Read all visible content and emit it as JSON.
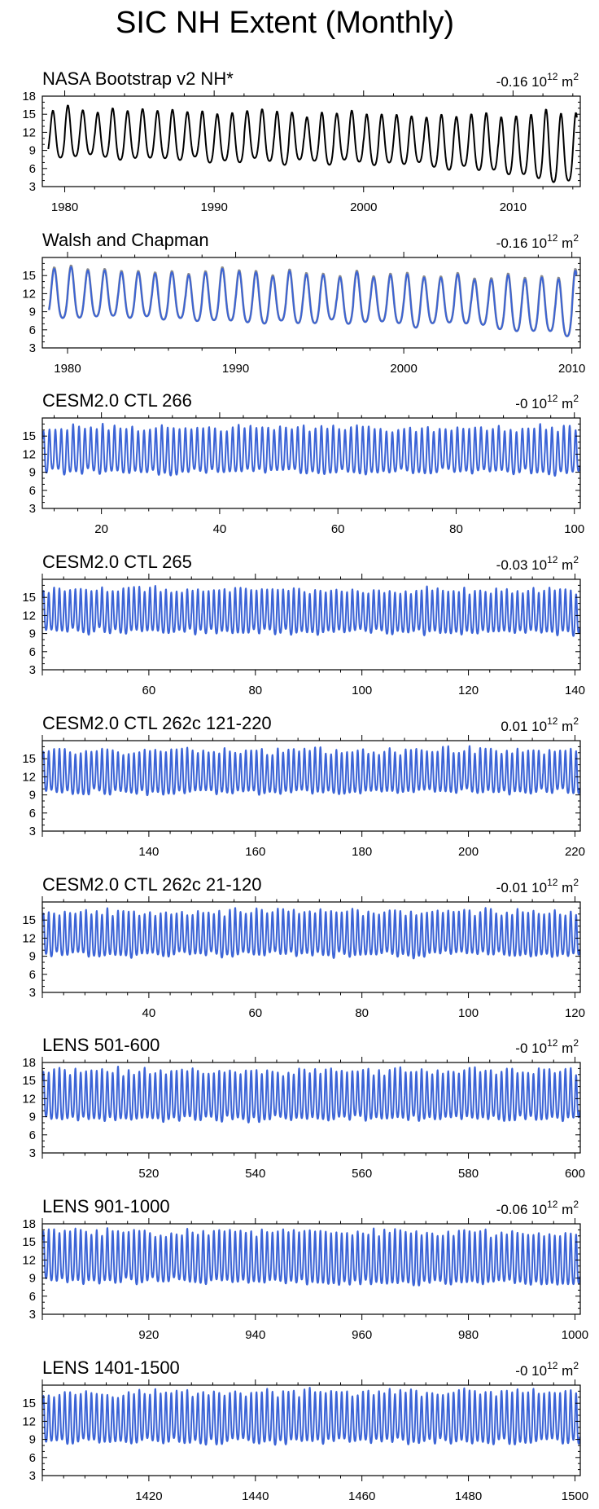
{
  "figure_title": "SIC NH Extent (Monthly)",
  "colors": {
    "obs": "#000000",
    "model": "#3c64d6",
    "obs_shadow": "#8c8c8c",
    "frame": "#000000"
  },
  "chart_data": [
    {
      "type": "line",
      "title": "NASA Bootstrap v2 NH*",
      "trend_label": "-0.16",
      "unit_base": "10",
      "unit_exp": "12",
      "unit_m": "m",
      "unit_m_exp": "2",
      "xlim": [
        1978.5,
        2014.5
      ],
      "ylim": [
        3,
        18
      ],
      "yticks": [
        "3",
        "6",
        "9",
        "12",
        "15",
        "18"
      ],
      "xticks": [
        {
          "value": 1980,
          "label": "1980"
        },
        {
          "value": 1990,
          "label": "1990"
        },
        {
          "value": 2000,
          "label": "2000"
        },
        {
          "value": 2010,
          "label": "2010"
        }
      ],
      "series": [
        {
          "style": "obs",
          "mean": 11.3,
          "amplitude": 4.2,
          "trend_per_year": -0.05,
          "extra_decline_after": 2004,
          "extra_decline_rate": -0.11,
          "x_start": 1978.9,
          "x_end": 2014.3,
          "seed": 11
        }
      ]
    },
    {
      "type": "line",
      "title": "Walsh and Chapman",
      "trend_label": "-0.16",
      "unit_base": "10",
      "unit_exp": "12",
      "unit_m": "m",
      "unit_m_exp": "2",
      "xlim": [
        1978.5,
        2010.5
      ],
      "ylim": [
        3,
        18
      ],
      "yticks": [
        "3",
        "6",
        "9",
        "12",
        "15"
      ],
      "xticks": [
        {
          "value": 1980,
          "label": "1980"
        },
        {
          "value": 1990,
          "label": "1990"
        },
        {
          "value": 2000,
          "label": "2000"
        },
        {
          "value": 2010,
          "label": "2010"
        }
      ],
      "series": [
        {
          "style": "obs_shadow",
          "mean": 11.4,
          "amplitude": 4.3,
          "trend_per_year": -0.05,
          "extra_decline_after": 2004,
          "extra_decline_rate": -0.11,
          "x_start": 1978.9,
          "x_end": 2010.3,
          "seed": 23
        },
        {
          "style": "model",
          "mean": 11.3,
          "amplitude": 4.2,
          "trend_per_year": -0.05,
          "extra_decline_after": 2004,
          "extra_decline_rate": -0.11,
          "x_start": 1978.9,
          "x_end": 2010.3,
          "seed": 23
        }
      ]
    },
    {
      "type": "line",
      "title": "CESM2.0 CTL 266",
      "trend_label": "-0",
      "unit_base": "10",
      "unit_exp": "12",
      "unit_m": "m",
      "unit_m_exp": "2",
      "xlim": [
        10,
        101
      ],
      "ylim": [
        3,
        18
      ],
      "yticks": [
        "3",
        "6",
        "9",
        "12",
        "15"
      ],
      "xticks": [
        {
          "value": 20,
          "label": "20"
        },
        {
          "value": 40,
          "label": "40"
        },
        {
          "value": 60,
          "label": "60"
        },
        {
          "value": 80,
          "label": "80"
        },
        {
          "value": 100,
          "label": "100"
        }
      ],
      "series": [
        {
          "style": "model",
          "mean": 12.0,
          "amplitude": 3.8,
          "trend_per_year": 0,
          "x_start": 10.1,
          "x_end": 100.9,
          "seed": 31
        }
      ]
    },
    {
      "type": "line",
      "title": "CESM2.0 CTL 265",
      "trend_label": "-0.03",
      "unit_base": "10",
      "unit_exp": "12",
      "unit_m": "m",
      "unit_m_exp": "2",
      "xlim": [
        40,
        141
      ],
      "ylim": [
        3,
        18
      ],
      "yticks": [
        "3",
        "6",
        "9",
        "12",
        "15"
      ],
      "xticks": [
        {
          "value": 60,
          "label": "60"
        },
        {
          "value": 80,
          "label": "80"
        },
        {
          "value": 100,
          "label": "100"
        },
        {
          "value": 120,
          "label": "120"
        },
        {
          "value": 140,
          "label": "140"
        }
      ],
      "series": [
        {
          "style": "model",
          "mean": 12.2,
          "amplitude": 3.6,
          "trend_per_year": -0.002,
          "x_start": 40.1,
          "x_end": 140.9,
          "seed": 47
        }
      ]
    },
    {
      "type": "line",
      "title": "CESM2.0 CTL 262c 121-220",
      "trend_label": "0.01",
      "unit_base": "10",
      "unit_exp": "12",
      "unit_m": "m",
      "unit_m_exp": "2",
      "xlim": [
        120,
        221
      ],
      "ylim": [
        3,
        18
      ],
      "yticks": [
        "3",
        "6",
        "9",
        "12",
        "15"
      ],
      "xticks": [
        {
          "value": 140,
          "label": "140"
        },
        {
          "value": 160,
          "label": "160"
        },
        {
          "value": 180,
          "label": "180"
        },
        {
          "value": 200,
          "label": "200"
        },
        {
          "value": 220,
          "label": "220"
        }
      ],
      "series": [
        {
          "style": "model",
          "mean": 12.2,
          "amplitude": 3.6,
          "trend_per_year": 0.001,
          "x_start": 120.1,
          "x_end": 220.9,
          "seed": 59
        }
      ]
    },
    {
      "type": "line",
      "title": "CESM2.0 CTL 262c 21-120",
      "trend_label": "-0.01",
      "unit_base": "10",
      "unit_exp": "12",
      "unit_m": "m",
      "unit_m_exp": "2",
      "xlim": [
        20,
        121
      ],
      "ylim": [
        3,
        18
      ],
      "yticks": [
        "3",
        "6",
        "9",
        "12",
        "15"
      ],
      "xticks": [
        {
          "value": 40,
          "label": "40"
        },
        {
          "value": 60,
          "label": "60"
        },
        {
          "value": 80,
          "label": "80"
        },
        {
          "value": 100,
          "label": "100"
        },
        {
          "value": 120,
          "label": "120"
        }
      ],
      "series": [
        {
          "style": "model",
          "mean": 12.2,
          "amplitude": 3.7,
          "trend_per_year": -0.001,
          "x_start": 20.1,
          "x_end": 120.9,
          "seed": 67
        }
      ]
    },
    {
      "type": "line",
      "title": "LENS 501-600",
      "trend_label": "-0",
      "unit_base": "10",
      "unit_exp": "12",
      "unit_m": "m",
      "unit_m_exp": "2",
      "xlim": [
        500,
        601
      ],
      "ylim": [
        3,
        18
      ],
      "yticks": [
        "3",
        "6",
        "9",
        "12",
        "15",
        "18"
      ],
      "xticks": [
        {
          "value": 520,
          "label": "520"
        },
        {
          "value": 540,
          "label": "540"
        },
        {
          "value": 560,
          "label": "560"
        },
        {
          "value": 580,
          "label": "580"
        },
        {
          "value": 600,
          "label": "600"
        }
      ],
      "series": [
        {
          "style": "model",
          "mean": 11.9,
          "amplitude": 4.1,
          "trend_per_year": 0,
          "x_start": 500.1,
          "x_end": 600.9,
          "seed": 71
        }
      ]
    },
    {
      "type": "line",
      "title": "LENS 901-1000",
      "trend_label": "-0.06",
      "unit_base": "10",
      "unit_exp": "12",
      "unit_m": "m",
      "unit_m_exp": "2",
      "xlim": [
        900,
        1001
      ],
      "ylim": [
        3,
        18
      ],
      "yticks": [
        "3",
        "6",
        "9",
        "12",
        "15",
        "18"
      ],
      "xticks": [
        {
          "value": 920,
          "label": "920"
        },
        {
          "value": 940,
          "label": "940"
        },
        {
          "value": 960,
          "label": "960"
        },
        {
          "value": 980,
          "label": "980"
        },
        {
          "value": 1000,
          "label": "1000"
        }
      ],
      "series": [
        {
          "style": "model",
          "mean": 11.9,
          "amplitude": 4.3,
          "trend_per_year": -0.004,
          "x_start": 900.1,
          "x_end": 1000.9,
          "seed": 83
        }
      ]
    },
    {
      "type": "line",
      "title": "LENS 1401-1500",
      "trend_label": "-0",
      "unit_base": "10",
      "unit_exp": "12",
      "unit_m": "m",
      "unit_m_exp": "2",
      "xlim": [
        1400,
        1501
      ],
      "ylim": [
        3,
        18
      ],
      "yticks": [
        "3",
        "6",
        "9",
        "12",
        "15"
      ],
      "xticks": [
        {
          "value": 1420,
          "label": "1420"
        },
        {
          "value": 1440,
          "label": "1440"
        },
        {
          "value": 1460,
          "label": "1460"
        },
        {
          "value": 1480,
          "label": "1480"
        },
        {
          "value": 1500,
          "label": "1500"
        }
      ],
      "series": [
        {
          "style": "model",
          "mean": 12.0,
          "amplitude": 4.2,
          "trend_per_year": 0,
          "x_start": 1400.1,
          "x_end": 1500.9,
          "seed": 97
        }
      ]
    }
  ]
}
